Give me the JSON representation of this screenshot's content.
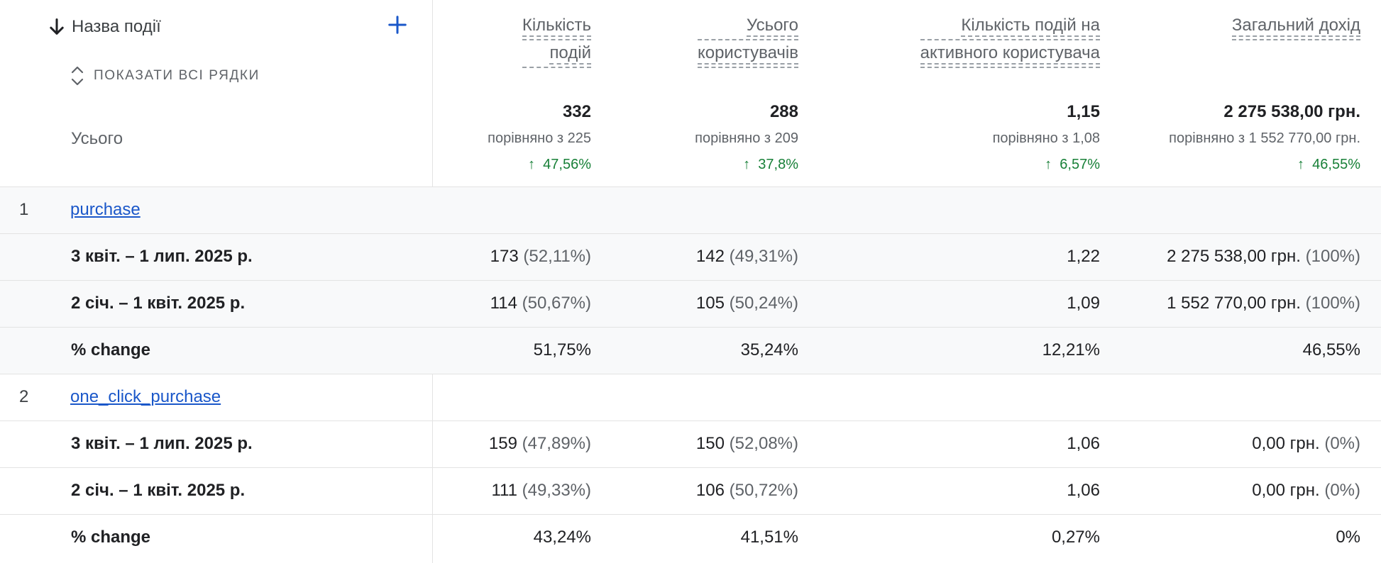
{
  "header": {
    "dimension_label": "Назва події",
    "show_all_rows": "ПОКАЗАТИ ВСІ РЯДКИ",
    "total_label": "Усього",
    "metrics": [
      {
        "line1": "Кількість",
        "line2": "подій"
      },
      {
        "line1": "Усього",
        "line2": "користувачів"
      },
      {
        "line1": "Кількість подій на",
        "line2": "активного користувача"
      },
      {
        "line1": "Загальний дохід",
        "line2": ""
      }
    ]
  },
  "totals": [
    {
      "value": "332",
      "compare": "порівняно з 225",
      "change": "47,56%"
    },
    {
      "value": "288",
      "compare": "порівняно з 209",
      "change": "37,8%"
    },
    {
      "value": "1,15",
      "compare": "порівняно з 1,08",
      "change": "6,57%"
    },
    {
      "value": "2 275 538,00 грн.",
      "compare": "порівняно з 1 552 770,00 грн.",
      "change": "46,55%"
    }
  ],
  "groups": [
    {
      "index": "1",
      "event": "purchase",
      "rows": [
        {
          "label": "3 квіт. – 1 лип. 2025 р.",
          "cells": [
            {
              "v": "173",
              "p": "(52,11%)"
            },
            {
              "v": "142",
              "p": "(49,31%)"
            },
            {
              "v": "1,22",
              "p": ""
            },
            {
              "v": "2 275 538,00 грн.",
              "p": "(100%)"
            }
          ]
        },
        {
          "label": "2 січ. – 1 квіт. 2025 р.",
          "cells": [
            {
              "v": "114",
              "p": "(50,67%)"
            },
            {
              "v": "105",
              "p": "(50,24%)"
            },
            {
              "v": "1,09",
              "p": ""
            },
            {
              "v": "1 552 770,00 грн.",
              "p": "(100%)"
            }
          ]
        },
        {
          "label": "% change",
          "cells": [
            {
              "v": "51,75%",
              "p": ""
            },
            {
              "v": "35,24%",
              "p": ""
            },
            {
              "v": "12,21%",
              "p": ""
            },
            {
              "v": "46,55%",
              "p": ""
            }
          ]
        }
      ]
    },
    {
      "index": "2",
      "event": "one_click_purchase",
      "rows": [
        {
          "label": "3 квіт. – 1 лип. 2025 р.",
          "cells": [
            {
              "v": "159",
              "p": "(47,89%)"
            },
            {
              "v": "150",
              "p": "(52,08%)"
            },
            {
              "v": "1,06",
              "p": ""
            },
            {
              "v": "0,00 грн.",
              "p": "(0%)"
            }
          ]
        },
        {
          "label": "2 січ. – 1 квіт. 2025 р.",
          "cells": [
            {
              "v": "111",
              "p": "(49,33%)"
            },
            {
              "v": "106",
              "p": "(50,72%)"
            },
            {
              "v": "1,06",
              "p": ""
            },
            {
              "v": "0,00 грн.",
              "p": "(0%)"
            }
          ]
        },
        {
          "label": "% change",
          "cells": [
            {
              "v": "43,24%",
              "p": ""
            },
            {
              "v": "41,51%",
              "p": ""
            },
            {
              "v": "0,27%",
              "p": ""
            },
            {
              "v": "0%",
              "p": ""
            }
          ]
        }
      ]
    }
  ],
  "colors": {
    "link": "#1a57c9",
    "positive": "#188038",
    "shade": "#f8f9fa"
  },
  "icons": {
    "sort": "arrow-down-icon",
    "add": "plus-icon",
    "expand": "unfold-icon",
    "up": "arrow-up-icon"
  }
}
